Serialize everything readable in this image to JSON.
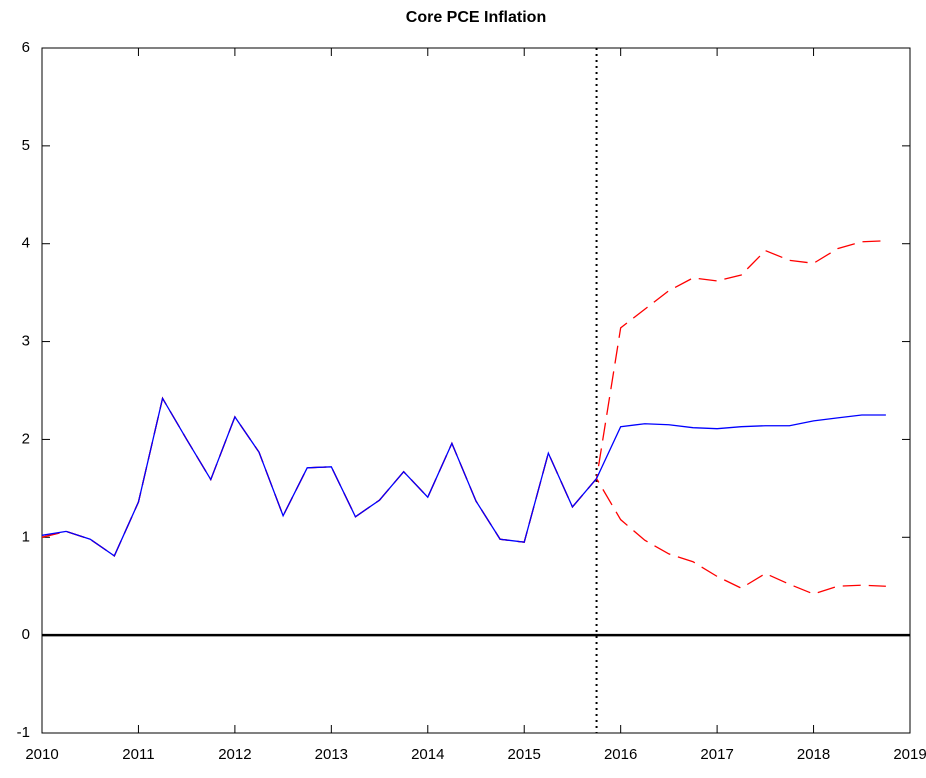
{
  "chart_data": {
    "type": "line",
    "title": "Core PCE Inflation",
    "x": [
      2010,
      2010.25,
      2010.5,
      2010.75,
      2011,
      2011.25,
      2011.5,
      2011.75,
      2012,
      2012.25,
      2012.5,
      2012.75,
      2013,
      2013.25,
      2013.5,
      2013.75,
      2014,
      2014.25,
      2014.5,
      2014.75,
      2015,
      2015.25,
      2015.5,
      2015.75,
      2016,
      2016.25,
      2016.5,
      2016.75,
      2017,
      2017.25,
      2017.5,
      2017.75,
      2018,
      2018.25,
      2018.5,
      2018.75
    ],
    "series": [
      {
        "color": "#ff0000",
        "dashed": true,
        "values": [
          1.0,
          1.06,
          0.98,
          0.81,
          1.36,
          2.42,
          2.0,
          1.59,
          2.23,
          1.87,
          1.22,
          1.71,
          1.72,
          1.21,
          1.38,
          1.67,
          1.41,
          1.96,
          1.37,
          0.98,
          0.95,
          1.86,
          1.31,
          1.6,
          3.14,
          3.33,
          3.52,
          3.65,
          3.62,
          3.68,
          3.93,
          3.83,
          3.8,
          3.95,
          4.02,
          4.03
        ]
      },
      {
        "color": "#ff0000",
        "dashed": true,
        "values": [
          1.0,
          1.06,
          0.98,
          0.81,
          1.36,
          2.42,
          2.0,
          1.59,
          2.23,
          1.87,
          1.22,
          1.71,
          1.72,
          1.21,
          1.38,
          1.67,
          1.41,
          1.96,
          1.37,
          0.98,
          0.95,
          1.86,
          1.31,
          1.6,
          1.18,
          0.97,
          0.83,
          0.75,
          0.6,
          0.48,
          0.63,
          0.52,
          0.42,
          0.5,
          0.51,
          0.5
        ]
      },
      {
        "color": "#0000ff",
        "dashed": false,
        "values": [
          1.02,
          1.06,
          0.98,
          0.81,
          1.36,
          2.42,
          2.0,
          1.59,
          2.23,
          1.87,
          1.22,
          1.71,
          1.72,
          1.21,
          1.38,
          1.67,
          1.41,
          1.96,
          1.37,
          0.98,
          0.95,
          1.86,
          1.31,
          1.6,
          2.13,
          2.16,
          2.15,
          2.12,
          2.11,
          2.13,
          2.14,
          2.14,
          2.19,
          2.22,
          2.25,
          2.25
        ]
      }
    ],
    "xlim": [
      2010,
      2019
    ],
    "xticks": [
      2010,
      2011,
      2012,
      2013,
      2014,
      2015,
      2016,
      2017,
      2018,
      2019
    ],
    "ylim": [
      -1,
      6
    ],
    "yticks": [
      -1,
      0,
      1,
      2,
      3,
      4,
      5,
      6
    ],
    "hline": 0,
    "vline": 2015.75
  }
}
